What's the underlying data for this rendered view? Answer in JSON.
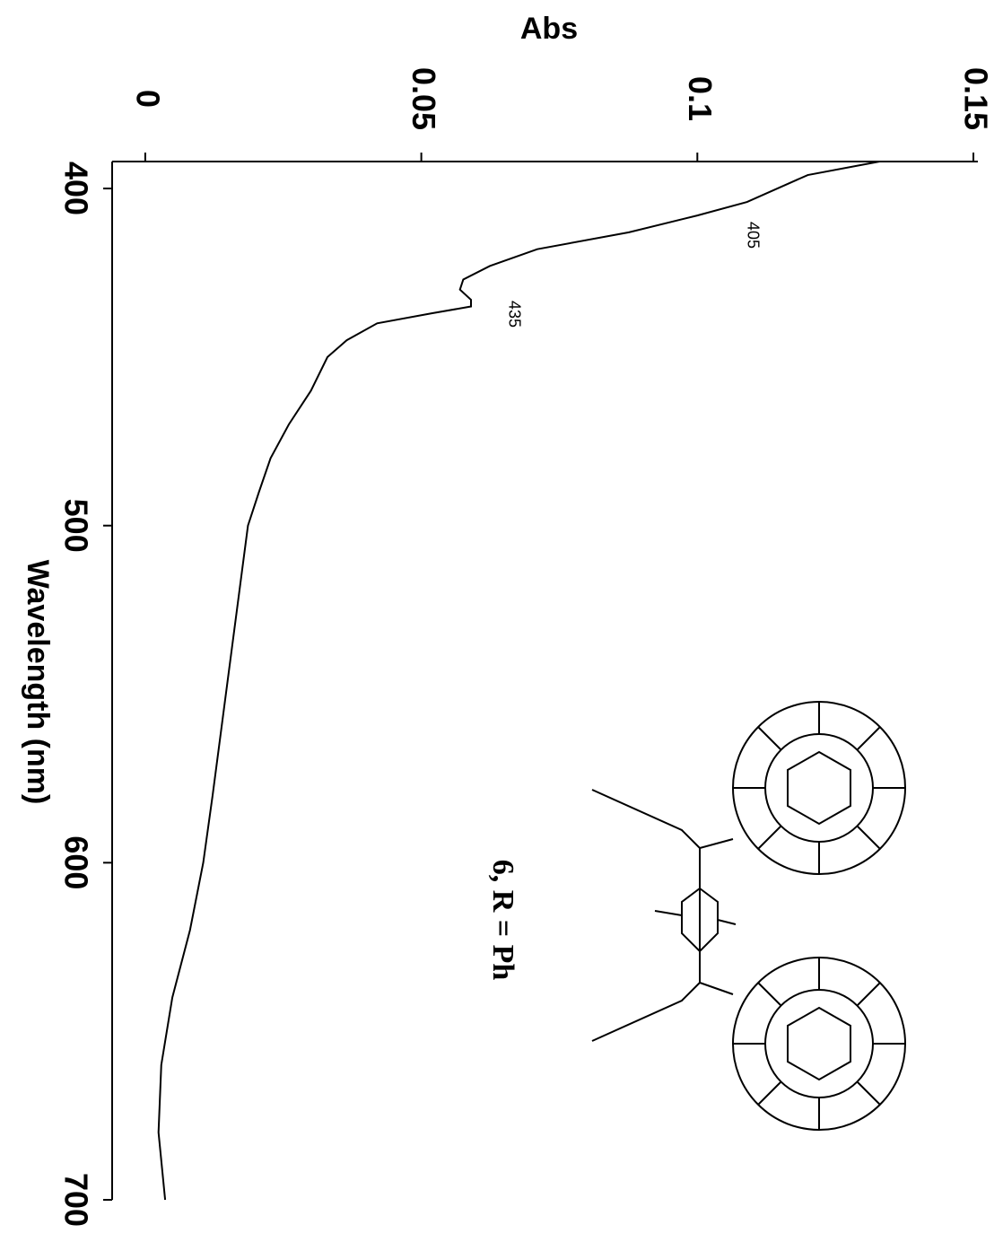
{
  "chart_data": {
    "type": "line",
    "xlabel": "Wavelength (nm)",
    "ylabel": "Abs",
    "x": [
      392,
      396,
      404,
      408,
      413,
      418,
      423,
      427,
      430,
      433,
      435,
      437,
      440,
      445,
      450,
      460,
      470,
      480,
      490,
      500,
      520,
      540,
      560,
      580,
      600,
      620,
      640,
      660,
      680,
      700
    ],
    "values": [
      0.133,
      0.12,
      0.109,
      0.1,
      0.0876,
      0.071,
      0.0624,
      0.0576,
      0.057,
      0.059,
      0.059,
      0.052,
      0.042,
      0.0365,
      0.033,
      0.03,
      0.026,
      0.0227,
      0.0206,
      0.0186,
      0.017,
      0.0154,
      0.0138,
      0.0122,
      0.0105,
      0.0081,
      0.0049,
      0.0029,
      0.0024,
      0.0036
    ],
    "color": "#000000",
    "xlim": [
      392,
      700
    ],
    "xticks": [
      400,
      500,
      600,
      700
    ],
    "ylim": [
      -0.006,
      0.15
    ],
    "yticks": [
      0,
      0.05,
      0.1,
      0.15
    ],
    "annotations": [
      "405",
      "435",
      "6, R = Ph"
    ]
  }
}
